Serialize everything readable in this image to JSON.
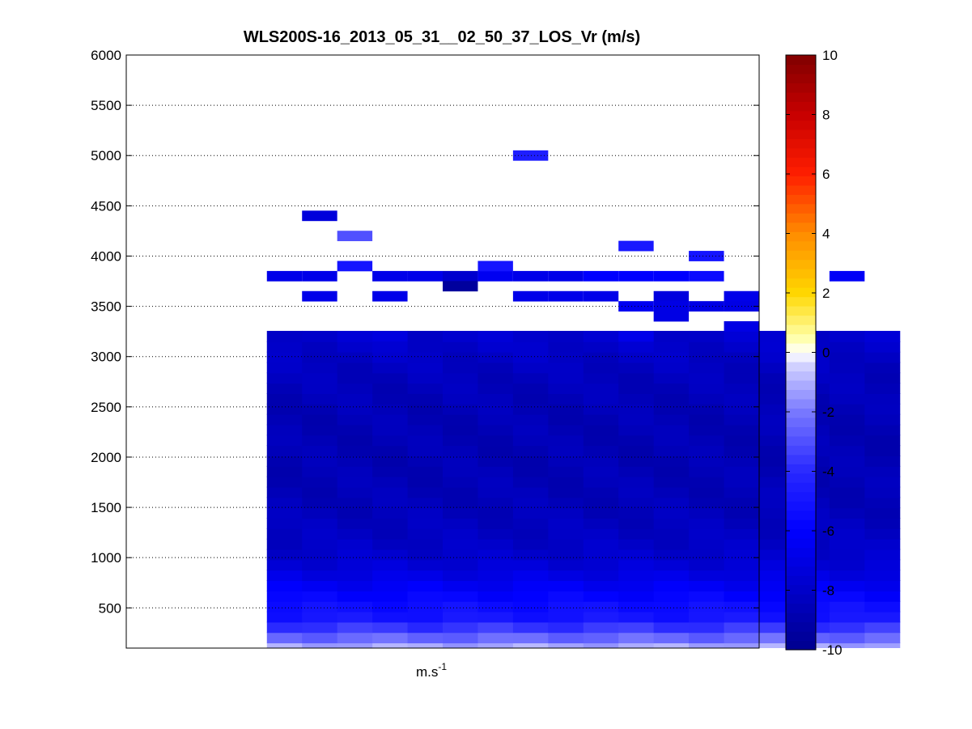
{
  "chart_data": {
    "type": "heatmap",
    "title": "WLS200S-16_2013_05_31__02_50_37_LOS_Vr (m/s)",
    "xlabel_base": "m.s",
    "xlabel_exp": "-1",
    "ylabel": "",
    "ylim": [
      100,
      6000
    ],
    "yticks": [
      "500",
      "1000",
      "1500",
      "2000",
      "2500",
      "3000",
      "3500",
      "4000",
      "4500",
      "5000",
      "5500",
      "6000"
    ],
    "grid": true,
    "colorbar": {
      "range": [
        -10,
        10
      ],
      "ticks": [
        "-10",
        "-8",
        "-6",
        "-4",
        "-2",
        "0",
        "2",
        "4",
        "6",
        "8",
        "10"
      ]
    },
    "column_count": 18,
    "data_columns": [
      5,
      22
    ],
    "gate_range": [
      100,
      3200
    ],
    "gate_count": 31,
    "profile": [
      [
        100,
        -1.2
      ],
      [
        150,
        -1.8
      ],
      [
        200,
        -2.4
      ],
      [
        250,
        -3.0
      ],
      [
        300,
        -3.6
      ],
      [
        350,
        -4.3
      ],
      [
        400,
        -5.0
      ],
      [
        500,
        -5.3
      ],
      [
        600,
        -5.8
      ],
      [
        700,
        -6.3
      ],
      [
        800,
        -6.9
      ],
      [
        900,
        -7.4
      ],
      [
        1000,
        -7.8
      ],
      [
        1200,
        -8.2
      ],
      [
        1500,
        -8.5
      ],
      [
        2000,
        -8.7
      ],
      [
        2500,
        -8.6
      ],
      [
        2800,
        -8.4
      ],
      [
        3000,
        -8.1
      ],
      [
        3200,
        -7.8
      ]
    ],
    "upper_cells": [
      {
        "col": 5,
        "y": 3800,
        "v": -6.8
      },
      {
        "col": 6,
        "y": 3800,
        "v": -6.8
      },
      {
        "col": 8,
        "y": 3800,
        "v": -6.8
      },
      {
        "col": 9,
        "y": 3800,
        "v": -6.8
      },
      {
        "col": 10,
        "y": 3800,
        "v": -7.8
      },
      {
        "col": 11,
        "y": 3800,
        "v": -6.5
      },
      {
        "col": 12,
        "y": 3800,
        "v": -6.8
      },
      {
        "col": 13,
        "y": 3800,
        "v": -6.8
      },
      {
        "col": 14,
        "y": 3800,
        "v": -6.0
      },
      {
        "col": 15,
        "y": 3800,
        "v": -6.0
      },
      {
        "col": 16,
        "y": 3800,
        "v": -6.0
      },
      {
        "col": 17,
        "y": 3800,
        "v": -5.5
      },
      {
        "col": 21,
        "y": 3800,
        "v": -6.3
      },
      {
        "col": 10,
        "y": 3700,
        "v": -9.5
      },
      {
        "col": 6,
        "y": 3600,
        "v": -6.8
      },
      {
        "col": 8,
        "y": 3600,
        "v": -6.8
      },
      {
        "col": 12,
        "y": 3600,
        "v": -6.8
      },
      {
        "col": 13,
        "y": 3600,
        "v": -6.8
      },
      {
        "col": 14,
        "y": 3600,
        "v": -6.8
      },
      {
        "col": 16,
        "y": 3600,
        "v": -7.2
      },
      {
        "col": 18,
        "y": 3600,
        "v": -6.8
      },
      {
        "col": 15,
        "y": 3500,
        "v": -6.5
      },
      {
        "col": 16,
        "y": 3500,
        "v": -7.0
      },
      {
        "col": 17,
        "y": 3500,
        "v": -7.0
      },
      {
        "col": 18,
        "y": 3500,
        "v": -7.0
      },
      {
        "col": 16,
        "y": 3400,
        "v": -7.0
      },
      {
        "col": 18,
        "y": 3300,
        "v": -7.0
      },
      {
        "col": 8,
        "y": 3200,
        "v": -7.2
      },
      {
        "col": 15,
        "y": 3200,
        "v": -6.8
      },
      {
        "col": 7,
        "y": 3900,
        "v": -5.0
      },
      {
        "col": 11,
        "y": 3900,
        "v": -5.0
      },
      {
        "col": 17,
        "y": 4000,
        "v": -5.0
      },
      {
        "col": 15,
        "y": 4100,
        "v": -4.8
      },
      {
        "col": 7,
        "y": 4200,
        "v": -3.0
      },
      {
        "col": 6,
        "y": 4400,
        "v": -7.3
      },
      {
        "col": 12,
        "y": 5000,
        "v": -4.5
      }
    ],
    "blank_cells": [
      {
        "col": 8,
        "y": 3100
      }
    ]
  }
}
